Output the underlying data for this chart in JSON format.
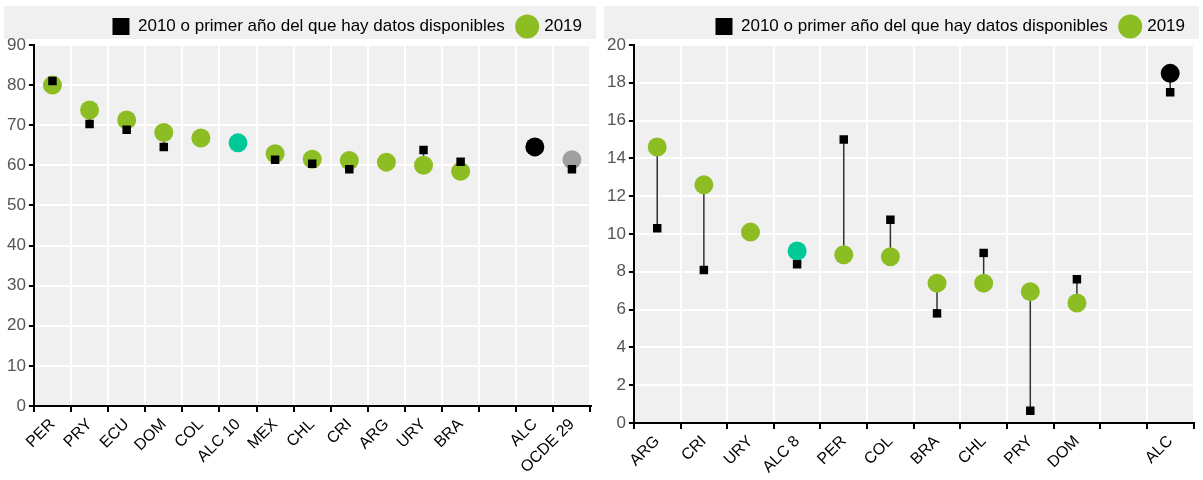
{
  "chart_data": [
    {
      "type": "scatter",
      "categories": [
        "PER",
        "PRY",
        "ECU",
        "DOM",
        "COL",
        "ALC 10",
        "MEX",
        "CHL",
        "CRI",
        "ARG",
        "URY",
        "BRA",
        null,
        "ALC",
        "OCDE 29"
      ],
      "ylim": [
        0,
        90
      ],
      "yticks": [
        0,
        10,
        20,
        30,
        40,
        50,
        60,
        70,
        80,
        90
      ],
      "grid": true,
      "legend": "top",
      "series": [
        {
          "name": "2010 o primer año del que hay datos disponibles",
          "color": "#000000",
          "marker": "square",
          "values": [
            81,
            70.3,
            68.9,
            64.6,
            null,
            null,
            61.4,
            60.4,
            59.0,
            null,
            63.8,
            60.9,
            null,
            null,
            59.0
          ]
        },
        {
          "name": "2019",
          "color": "#8cbe23",
          "marker": "circle",
          "colors": [
            "#8cbe23",
            "#8cbe23",
            "#8cbe23",
            "#8cbe23",
            "#8cbe23",
            "#00c896",
            "#8cbe23",
            "#8cbe23",
            "#8cbe23",
            "#8cbe23",
            "#8cbe23",
            "#8cbe23",
            "#8cbe23",
            "#000000",
            "#a0a0a0"
          ],
          "values": [
            80.0,
            73.8,
            71.3,
            68.2,
            66.8,
            65.6,
            62.9,
            61.5,
            61.2,
            60.8,
            60.0,
            58.5,
            null,
            64.6,
            61.4
          ]
        }
      ]
    },
    {
      "type": "scatter",
      "categories": [
        "ARG",
        "CRI",
        "URY",
        "ALC 8",
        "PER",
        "COL",
        "BRA",
        "CHL",
        "PRY",
        "DOM",
        null,
        "ALC"
      ],
      "ylim": [
        0,
        20
      ],
      "yticks": [
        0,
        2,
        4,
        6,
        8,
        10,
        12,
        14,
        16,
        18,
        20
      ],
      "grid": true,
      "legend": "top",
      "series": [
        {
          "name": "2010 o primer año del que hay datos disponibles",
          "color": "#000000",
          "marker": "square",
          "values": [
            10.3,
            8.1,
            null,
            8.4,
            15.0,
            10.75,
            5.8,
            9.0,
            0.65,
            7.6,
            null,
            17.5
          ]
        },
        {
          "name": "2019",
          "color": "#8cbe23",
          "marker": "circle",
          "colors": [
            "#8cbe23",
            "#8cbe23",
            "#8cbe23",
            "#00c896",
            "#8cbe23",
            "#8cbe23",
            "#8cbe23",
            "#8cbe23",
            "#8cbe23",
            "#8cbe23",
            "#8cbe23",
            "#000000"
          ],
          "values": [
            14.6,
            12.6,
            10.1,
            9.1,
            8.9,
            8.8,
            7.4,
            7.4,
            6.95,
            6.35,
            null,
            18.5
          ]
        }
      ]
    }
  ]
}
